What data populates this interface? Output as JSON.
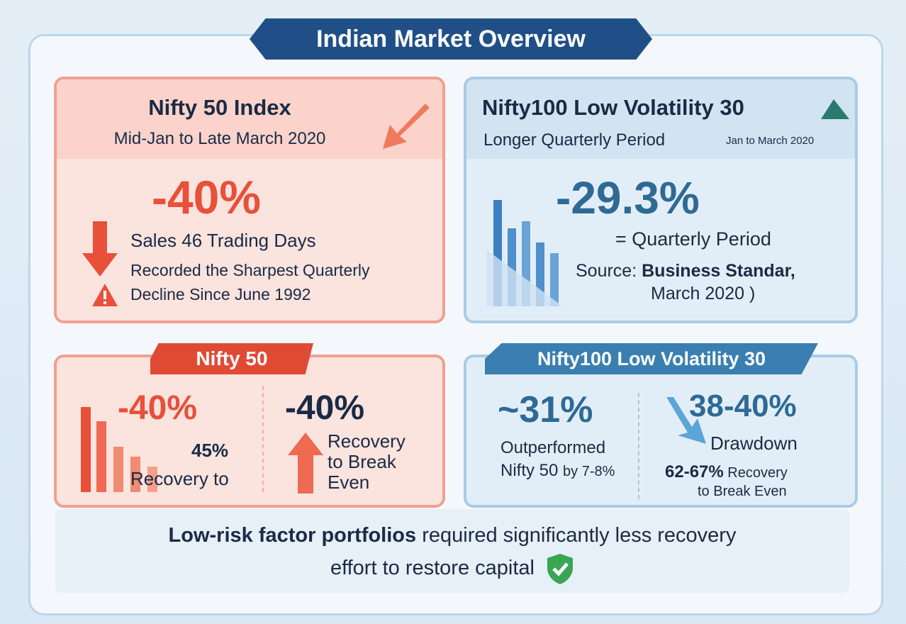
{
  "title": "Indian Market Overview",
  "nifty50": {
    "title": "Nifty 50 Index",
    "period": "Mid-Jan to Late March 2020",
    "value": "-40%",
    "line1": "Sales 46 Trading Days",
    "line2": "Recorded the Sharpest Quarterly",
    "line3": "Decline Since June 1992"
  },
  "lowvol": {
    "title": "Nifty100 Low Volatility 30",
    "period": "Longer Quarterly Period",
    "period_small": "Jan to March 2020",
    "value": "-29.3%",
    "eq": "= Quarterly Period",
    "source_label": "Source:",
    "source": "Business Standar,",
    "source_date": "March 2020 )"
  },
  "nifty50_recovery": {
    "tag": "Nifty 50",
    "value1": "-40%",
    "pct": "45%",
    "recovery_to": "Recovery to",
    "value2": "-40%",
    "rec": "Recovery",
    "to_break": "to Break",
    "even": "Even"
  },
  "lowvol_recovery": {
    "tag": "Nifty100 Low Volatility 30",
    "value1": "~31%",
    "out1": "Outperformed",
    "out2": "Nifty 50",
    "out3": "by 7-8%",
    "value2": "38-40%",
    "drawdown": "Drawdown",
    "rec_pct": "62-67%",
    "rec1": "Recovery",
    "rec2": "to Break Even"
  },
  "conclusion": {
    "bold": "Low-risk factor portfolios",
    "rest1": " required significantly less recovery",
    "rest2": "effort to restore capital"
  },
  "colors": {
    "red": "#e8503a",
    "blue": "#2e6a94",
    "navy": "#1f4f86",
    "green": "#3aa655"
  },
  "icons": [
    "down-arrow-icon",
    "warning-icon",
    "mountain-icon",
    "bar-chart-icon",
    "up-arrow-icon",
    "shield-check-icon"
  ]
}
